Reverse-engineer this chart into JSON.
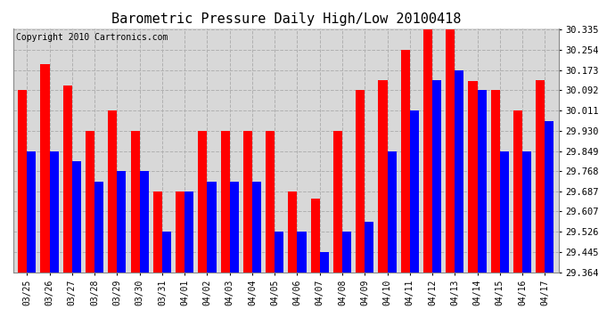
{
  "title": "Barometric Pressure Daily High/Low 20100418",
  "copyright": "Copyright 2010 Cartronics.com",
  "dates": [
    "03/25",
    "03/26",
    "03/27",
    "03/28",
    "03/29",
    "03/30",
    "03/31",
    "04/01",
    "04/02",
    "04/03",
    "04/04",
    "04/05",
    "04/06",
    "04/07",
    "04/08",
    "04/09",
    "04/10",
    "04/11",
    "04/12",
    "04/13",
    "04/14",
    "04/15",
    "04/16",
    "04/17"
  ],
  "highs": [
    30.092,
    30.198,
    30.112,
    29.93,
    30.011,
    29.93,
    29.687,
    29.687,
    29.93,
    29.93,
    29.93,
    29.93,
    29.687,
    29.66,
    29.93,
    30.092,
    30.133,
    30.254,
    30.335,
    30.335,
    30.13,
    30.092,
    30.011,
    30.133
  ],
  "lows": [
    29.849,
    29.849,
    29.808,
    29.728,
    29.768,
    29.768,
    29.526,
    29.687,
    29.728,
    29.728,
    29.728,
    29.526,
    29.526,
    29.445,
    29.526,
    29.566,
    29.849,
    30.011,
    30.133,
    30.173,
    30.092,
    29.849,
    29.849,
    29.97
  ],
  "ymin": 29.364,
  "ymax": 30.335,
  "yticks": [
    29.364,
    29.445,
    29.526,
    29.607,
    29.687,
    29.768,
    29.849,
    29.93,
    30.011,
    30.092,
    30.173,
    30.254,
    30.335
  ],
  "high_color": "#ff0000",
  "low_color": "#0000ff",
  "bg_color": "#ffffff",
  "plot_bg_color": "#d8d8d8",
  "grid_color": "#b0b0b0",
  "title_fontsize": 11,
  "copyright_fontsize": 7
}
